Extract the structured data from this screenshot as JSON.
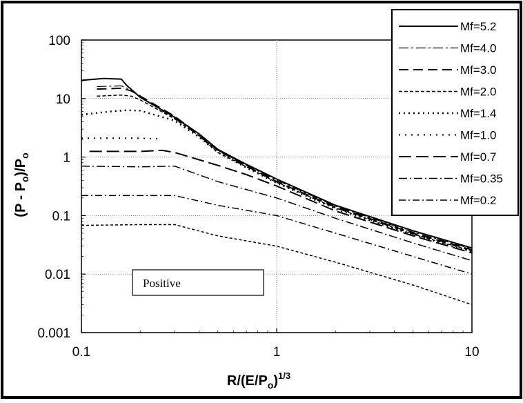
{
  "chart_data": {
    "type": "line",
    "title": "",
    "xlabel": "R/(E/P",
    "xlabel_sub": "o",
    "xlabel_close": ")",
    "xlabel_sup": "1/3",
    "ylabel": "(P - P",
    "ylabel_sub": "o",
    "ylabel_close": ")/P",
    "ylabel_sub2": "o",
    "x_scale": "log",
    "y_scale": "log",
    "xlim": [
      0.1,
      10
    ],
    "ylim": [
      0.001,
      100
    ],
    "grid": true,
    "legend_position": "top-right",
    "x_ticks": [
      {
        "value": 0.1,
        "label": "0.1"
      },
      {
        "value": 1,
        "label": "1"
      },
      {
        "value": 10,
        "label": "10"
      }
    ],
    "y_ticks": [
      {
        "value": 100,
        "label": "100"
      },
      {
        "value": 10,
        "label": "10"
      },
      {
        "value": 1,
        "label": "1"
      },
      {
        "value": 0.1,
        "label": "0.1"
      },
      {
        "value": 0.01,
        "label": "0.01"
      },
      {
        "value": 0.001,
        "label": "0.001"
      }
    ],
    "annotation": "Positive",
    "series": [
      {
        "name": "Mf=5.2",
        "dash": "",
        "width": 2,
        "x": [
          0.1,
          0.13,
          0.16,
          0.17,
          0.2,
          0.3,
          0.4,
          0.5,
          0.7,
          1,
          2,
          5,
          10
        ],
        "y": [
          20.5,
          22,
          21.5,
          17,
          10.5,
          4.8,
          2.5,
          1.35,
          0.75,
          0.42,
          0.15,
          0.055,
          0.028
        ]
      },
      {
        "name": "Mf=4.0",
        "dash": "14 4 3 4",
        "width": 1.2,
        "x": [
          0.12,
          0.16,
          0.18,
          0.2,
          0.3,
          0.4,
          0.5,
          0.7,
          1,
          2,
          5,
          10
        ],
        "y": [
          16,
          16.5,
          14,
          10.5,
          4.6,
          2.3,
          1.3,
          0.72,
          0.4,
          0.145,
          0.052,
          0.027
        ]
      },
      {
        "name": "Mf=3.0",
        "dash": "14 7",
        "width": 2,
        "x": [
          0.12,
          0.16,
          0.18,
          0.2,
          0.3,
          0.4,
          0.5,
          0.7,
          1,
          2,
          5,
          10
        ],
        "y": [
          14.5,
          15,
          13.5,
          11,
          5,
          2.4,
          1.3,
          0.7,
          0.38,
          0.14,
          0.05,
          0.026
        ]
      },
      {
        "name": "Mf=2.0",
        "dash": "5 3",
        "width": 1.5,
        "x": [
          0.12,
          0.16,
          0.18,
          0.2,
          0.3,
          0.4,
          0.5,
          0.7,
          1,
          2,
          5,
          10
        ],
        "y": [
          11,
          11.5,
          11,
          9.5,
          4.5,
          2.3,
          1.2,
          0.68,
          0.37,
          0.135,
          0.048,
          0.025
        ]
      },
      {
        "name": "Mf=1.4",
        "dash": "2 5",
        "width": 2.5,
        "x": [
          0.1,
          0.14,
          0.17,
          0.2,
          0.3,
          0.4,
          0.5,
          0.7,
          1,
          2,
          5,
          10
        ],
        "y": [
          5.3,
          6,
          6.3,
          6.2,
          4.2,
          2.2,
          1.2,
          0.66,
          0.36,
          0.13,
          0.047,
          0.024
        ]
      },
      {
        "name": "Mf=1.0",
        "dash": "2 7",
        "width": 2,
        "x": [
          0.1,
          0.15,
          0.2,
          0.25
        ],
        "y": [
          2.1,
          2.1,
          2.1,
          2.05
        ]
      },
      {
        "name": "Mf=0.7",
        "dash": "18 7",
        "width": 2,
        "x": [
          0.11,
          0.2,
          0.26,
          0.3,
          0.5,
          0.7,
          1,
          2,
          5,
          10
        ],
        "y": [
          1.25,
          1.25,
          1.3,
          1.2,
          0.72,
          0.5,
          0.32,
          0.12,
          0.045,
          0.023
        ]
      },
      {
        "name": "Mf=0.35",
        "dash": "12 4 2 4",
        "width": 1.5,
        "x": [
          0.1,
          0.2,
          0.3,
          0.5,
          1,
          2,
          5,
          10
        ],
        "y": [
          0.7,
          0.68,
          0.7,
          0.38,
          0.2,
          0.09,
          0.034,
          0.017
        ]
      },
      {
        "name": "Mf=0.2",
        "dash": "10 4 2 4",
        "width": 1.5,
        "x": [
          0.1,
          0.2,
          0.3,
          0.5,
          1,
          2,
          5,
          10
        ],
        "y": [
          0.22,
          0.22,
          0.22,
          0.15,
          0.1,
          0.05,
          0.02,
          0.01
        ]
      },
      {
        "name": "",
        "dash": "4 3",
        "width": 1.5,
        "x": [
          0.1,
          0.2,
          0.3,
          0.5,
          1,
          2,
          5,
          10
        ],
        "y": [
          0.068,
          0.07,
          0.07,
          0.045,
          0.03,
          0.016,
          0.0065,
          0.003
        ]
      }
    ]
  }
}
